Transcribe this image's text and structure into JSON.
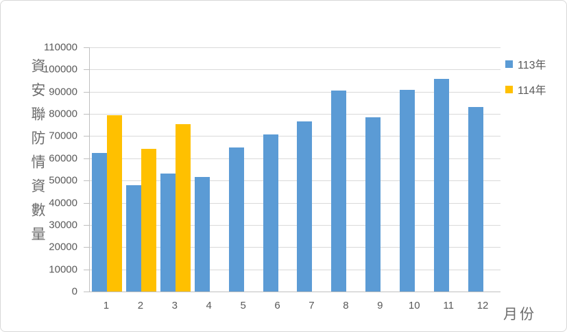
{
  "chart_data": {
    "type": "bar",
    "title": "",
    "categories": [
      "1",
      "2",
      "3",
      "4",
      "5",
      "6",
      "7",
      "8",
      "9",
      "10",
      "11",
      "12"
    ],
    "series": [
      {
        "name": "113年",
        "color": "#5B9BD5",
        "values": [
          62500,
          47800,
          53300,
          51500,
          64900,
          70700,
          76500,
          90400,
          78400,
          90900,
          95900,
          83000
        ]
      },
      {
        "name": "114年",
        "color": "#FFC000",
        "values": [
          79400,
          64300,
          75400,
          null,
          null,
          null,
          null,
          null,
          null,
          null,
          null,
          null
        ]
      }
    ],
    "xlabel": "月份",
    "ylabel": "資安聯防情資數量",
    "ylim": [
      0,
      110000
    ],
    "ytick_step": 10000,
    "ytick_labels": [
      "0",
      "10000",
      "20000",
      "30000",
      "40000",
      "50000",
      "60000",
      "70000",
      "80000",
      "90000",
      "100000",
      "110000"
    ],
    "grid": true,
    "legend_position": "top-right"
  },
  "colors": {
    "axis_text": "#595959",
    "title_text": "#6d6d6d",
    "gridline": "#d9d9d9",
    "axis_line": "#bfbfbf",
    "series_113": "#5B9BD5",
    "series_114": "#FFC000"
  }
}
